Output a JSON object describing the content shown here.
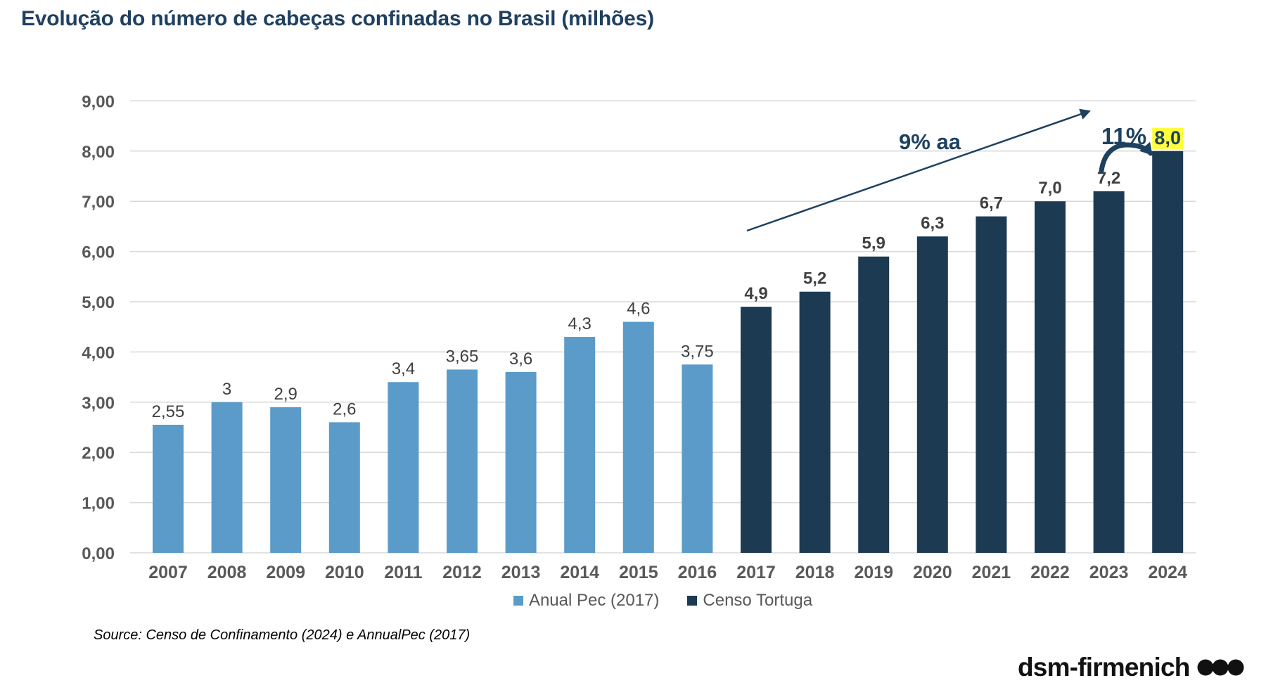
{
  "colors": {
    "title_text": "#1F4060",
    "bar_light_blue": "#5B9BC9",
    "bar_dark_navy": "#1D3A53",
    "annotation_navy": "#1E4160",
    "highlight_yellow": "#FFFF3B",
    "grid_line": "#D9D9D9",
    "axis_label_gray": "#595959",
    "value_label_gray": "#404040",
    "legend_text_gray": "#595959",
    "source_text": "#000000",
    "logo_black": "#111111"
  },
  "source": "Source: Censo de Confinamento (2024) e AnnualPec (2017)",
  "logo": {
    "text": "dsm-firmenich",
    "icon": "three-dots-icon"
  },
  "chart_data": {
    "type": "bar",
    "title": "Evolução do número de cabeças confinadas no Brasil (milhões)",
    "categories": [
      "2007",
      "2008",
      "2009",
      "2010",
      "2011",
      "2012",
      "2013",
      "2014",
      "2015",
      "2016",
      "2017",
      "2018",
      "2019",
      "2020",
      "2021",
      "2022",
      "2023",
      "2024"
    ],
    "series": [
      {
        "name": "Anual Pec (2017)",
        "color": "#5B9BC9",
        "values": [
          2.55,
          3,
          2.9,
          2.6,
          3.4,
          3.65,
          3.6,
          4.3,
          4.6,
          3.75,
          null,
          null,
          null,
          null,
          null,
          null,
          null,
          null
        ]
      },
      {
        "name": "Censo Tortuga",
        "color": "#1D3A53",
        "values": [
          null,
          null,
          null,
          null,
          null,
          null,
          null,
          null,
          null,
          null,
          4.9,
          5.2,
          5.9,
          6.3,
          6.7,
          7.0,
          7.2,
          8.0
        ]
      }
    ],
    "value_labels": [
      "2,55",
      "3",
      "2,9",
      "2,6",
      "3,4",
      "3,65",
      "3,6",
      "4,3",
      "4,6",
      "3,75",
      "4,9",
      "5,2",
      "5,9",
      "6,3",
      "6,7",
      "7,0",
      "7,2",
      "8,0"
    ],
    "highlight_index": 17,
    "ylim": [
      0,
      9
    ],
    "ytick_labels": [
      "0,00",
      "1,00",
      "2,00",
      "3,00",
      "4,00",
      "5,00",
      "6,00",
      "7,00",
      "8,00",
      "9,00"
    ],
    "grid": true,
    "legend_position": "bottom",
    "annotations": {
      "trend_label": "9% aa",
      "trend_arrow": "diagonal arrow rising over 2017-2023 bars",
      "jump_label": "11%",
      "jump_arrow": "arc arrow from 2023 bar top to 2024 bar top",
      "highlighted_value": "8,0"
    }
  }
}
